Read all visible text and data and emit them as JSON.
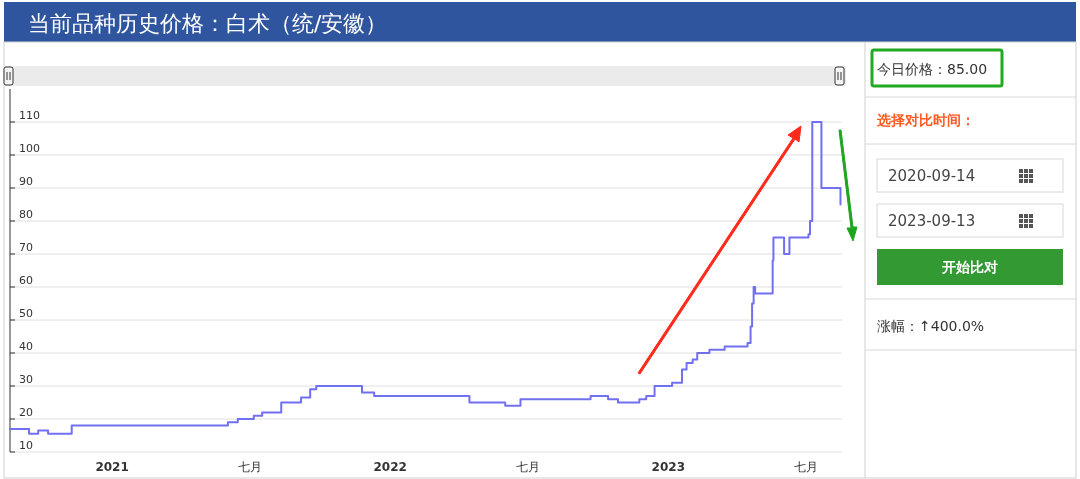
{
  "chart_data": {
    "type": "step",
    "title": "当前品种历史价格：白术（统/安徽）",
    "x": [
      "2020-08-20",
      "2020-09-14",
      "2020-09-26",
      "2020-10-09",
      "2020-11-09",
      "2021-06-02",
      "2021-06-15",
      "2021-07-06",
      "2021-07-17",
      "2021-08-11",
      "2021-09-06",
      "2021-09-18",
      "2021-09-26",
      "2021-11-25",
      "2021-12-11",
      "2022-04-15",
      "2022-06-01",
      "2022-06-21",
      "2022-09-21",
      "2022-10-14",
      "2022-10-27",
      "2022-11-24",
      "2022-12-03",
      "2022-12-14",
      "2023-01-06",
      "2023-01-19",
      "2023-01-25",
      "2023-02-02",
      "2023-02-08",
      "2023-02-24",
      "2023-03-16",
      "2023-04-15",
      "2023-04-19",
      "2023-04-21",
      "2023-04-23",
      "2023-04-25",
      "2023-05-18",
      "2023-05-19",
      "2023-06-02",
      "2023-06-09",
      "2023-07-04",
      "2023-07-06",
      "2023-07-09",
      "2023-07-21",
      "2023-08-15"
    ],
    "series": [
      {
        "color": "#7070f0",
        "values": [
          17,
          15.5,
          16.5,
          15.5,
          18,
          19,
          20,
          21,
          22,
          25,
          26.5,
          29,
          30,
          28,
          27,
          25,
          24,
          26,
          27,
          26,
          25,
          26,
          27,
          30,
          31,
          35,
          37,
          38,
          40,
          41,
          42,
          43,
          48,
          55,
          60,
          58,
          68,
          75,
          70,
          75,
          76,
          80,
          110,
          90,
          85
        ]
      }
    ],
    "xlim": [
      "2020-08-20",
      "2023-08-17"
    ],
    "xticks": [
      {
        "value": "2021-01-01",
        "label": "2021"
      },
      {
        "value": "2021-07-01",
        "label": "七月"
      },
      {
        "value": "2022-01-01",
        "label": "2022"
      },
      {
        "value": "2022-07-01",
        "label": "七月"
      },
      {
        "value": "2023-01-01",
        "label": "2023"
      },
      {
        "value": "2023-07-01",
        "label": "七月"
      }
    ],
    "ylim": [
      10,
      120
    ],
    "yticks": [
      10,
      20,
      30,
      40,
      50,
      60,
      70,
      80,
      90,
      100,
      110
    ],
    "grid": "y",
    "annotations": [
      "今日价格：85.00",
      "选择对比时间：",
      "2020-09-14",
      "2023-09-13",
      "开始比对",
      "涨幅：↑400.0%"
    ]
  }
}
